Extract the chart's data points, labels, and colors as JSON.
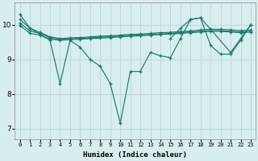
{
  "xlabel": "Humidex (Indice chaleur)",
  "background_color": "#d8eeee",
  "grid_color": "#c0d8d8",
  "line_color": "#1a7a6a",
  "x_ticks": [
    0,
    1,
    2,
    3,
    4,
    5,
    6,
    7,
    8,
    9,
    10,
    11,
    12,
    13,
    14,
    15,
    16,
    17,
    18,
    19,
    20,
    21,
    22,
    23
  ],
  "y_ticks": [
    7,
    8,
    9,
    10
  ],
  "ylim": [
    6.7,
    10.65
  ],
  "xlim": [
    -0.5,
    23.5
  ],
  "series": [
    {
      "x": [
        0,
        1,
        2,
        3,
        4,
        5,
        6,
        7,
        8,
        9,
        10,
        11,
        12,
        13,
        14,
        15,
        16,
        17,
        18,
        19,
        20,
        21,
        22,
        23
      ],
      "y": [
        10.15,
        9.9,
        9.78,
        9.65,
        9.6,
        9.62,
        9.63,
        9.65,
        9.67,
        9.68,
        9.7,
        9.72,
        9.73,
        9.75,
        9.77,
        9.78,
        9.8,
        9.82,
        9.85,
        9.87,
        9.87,
        9.85,
        9.83,
        9.85
      ]
    },
    {
      "x": [
        0,
        1,
        2,
        3,
        4,
        5,
        6,
        7,
        8,
        9,
        10,
        11,
        12,
        13,
        14,
        15,
        16,
        17,
        18,
        19,
        20,
        21,
        22,
        23
      ],
      "y": [
        10.05,
        9.82,
        9.75,
        9.62,
        9.58,
        9.6,
        9.61,
        9.62,
        9.64,
        9.65,
        9.67,
        9.69,
        9.7,
        9.72,
        9.73,
        9.75,
        9.77,
        9.79,
        9.81,
        9.83,
        9.83,
        9.81,
        9.79,
        9.81
      ]
    },
    {
      "x": [
        0,
        1,
        2,
        3,
        4,
        5,
        6,
        7,
        8,
        9,
        10,
        11,
        12,
        13,
        14,
        15,
        16,
        17,
        18,
        19,
        20,
        21,
        22,
        23
      ],
      "y": [
        9.98,
        9.75,
        9.7,
        9.58,
        9.55,
        9.57,
        9.58,
        9.6,
        9.61,
        9.63,
        9.65,
        9.67,
        9.68,
        9.7,
        9.72,
        9.73,
        9.75,
        9.77,
        9.79,
        9.81,
        9.81,
        9.79,
        9.77,
        9.79
      ]
    },
    {
      "x": [
        0,
        1,
        3,
        4,
        5,
        6,
        7,
        8,
        9,
        10,
        11,
        12,
        13,
        14,
        15,
        16,
        17,
        18,
        21,
        22,
        23
      ],
      "y": [
        10.3,
        9.9,
        9.55,
        8.3,
        9.55,
        9.35,
        9.0,
        8.8,
        8.3,
        7.15,
        8.65,
        8.65,
        9.2,
        9.1,
        9.05,
        9.6,
        10.15,
        10.2,
        9.2,
        9.6,
        10.0
      ]
    },
    {
      "x": [
        15,
        16,
        17,
        18,
        19,
        20,
        21,
        22,
        23
      ],
      "y": [
        9.6,
        9.9,
        10.15,
        10.2,
        9.4,
        9.15,
        9.15,
        9.55,
        10.0
      ]
    }
  ]
}
